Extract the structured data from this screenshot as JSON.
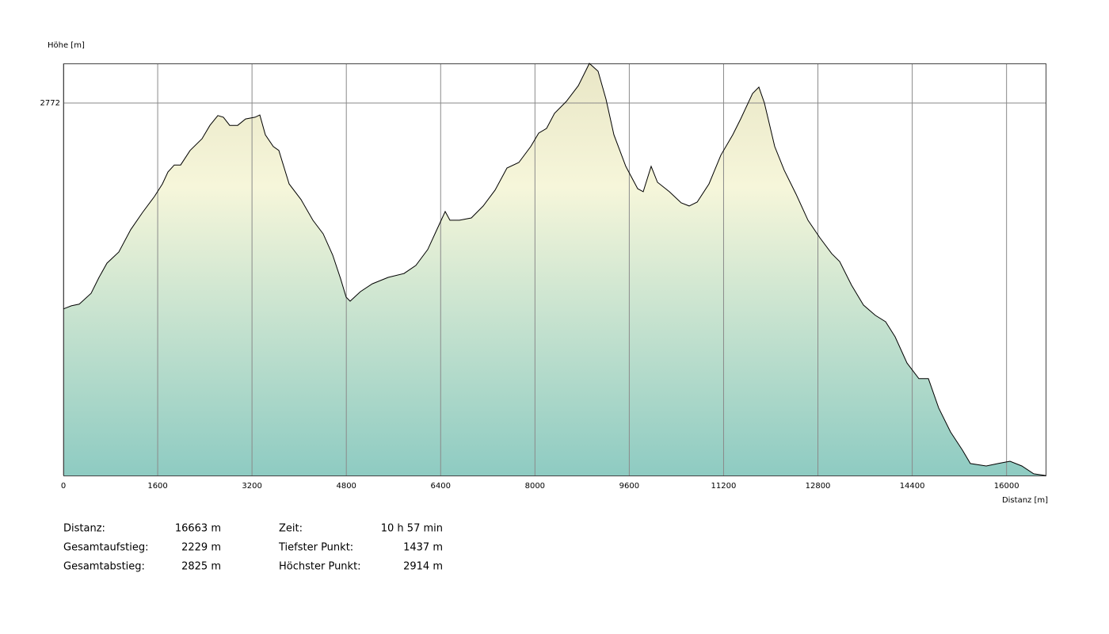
{
  "chart_data": {
    "type": "area",
    "y_label": "Höhe [m]",
    "x_label": "Distanz [m]",
    "xlim": [
      0,
      16663
    ],
    "ylim": [
      1437,
      2914
    ],
    "xticks": [
      0,
      1600,
      3200,
      4800,
      6400,
      8000,
      9600,
      11200,
      12800,
      14400,
      16000
    ],
    "yticks": [
      2772
    ],
    "grid": true,
    "line_color": "#000000",
    "fill_colors": [
      "#e9e6c6",
      "#f6f6da",
      "#8ecbc2"
    ],
    "x": [
      0,
      134,
      269,
      470,
      605,
      739,
      941,
      1142,
      1344,
      1545,
      1680,
      1774,
      1881,
      1989,
      2150,
      2352,
      2486,
      2620,
      2714,
      2822,
      2956,
      3091,
      3252,
      3333,
      3427,
      3561,
      3655,
      3830,
      4031,
      4233,
      4408,
      4569,
      4703,
      4797,
      4865,
      5039,
      5241,
      5510,
      5778,
      5980,
      6181,
      6316,
      6477,
      6558,
      6719,
      6921,
      7122,
      7324,
      7525,
      7727,
      7928,
      8063,
      8197,
      8332,
      8533,
      8735,
      8869,
      8923,
      9071,
      9205,
      9340,
      9541,
      9743,
      9837,
      9971,
      10079,
      10280,
      10482,
      10616,
      10751,
      10952,
      11154,
      11355,
      11490,
      11691,
      11798,
      11893,
      12067,
      12228,
      12430,
      12632,
      12833,
      13035,
      13169,
      13371,
      13572,
      13774,
      13949,
      14110,
      14312,
      14513,
      14674,
      14849,
      15051,
      15252,
      15387,
      15655,
      15857,
      16058,
      16260,
      16462,
      16663
    ],
    "values": [
      2034,
      2045,
      2051,
      2090,
      2147,
      2198,
      2238,
      2318,
      2380,
      2437,
      2482,
      2525,
      2550,
      2550,
      2602,
      2644,
      2692,
      2727,
      2721,
      2692,
      2692,
      2715,
      2721,
      2729,
      2658,
      2616,
      2602,
      2482,
      2426,
      2352,
      2303,
      2227,
      2142,
      2076,
      2062,
      2096,
      2124,
      2147,
      2161,
      2190,
      2247,
      2309,
      2383,
      2352,
      2352,
      2360,
      2403,
      2460,
      2539,
      2559,
      2616,
      2664,
      2681,
      2735,
      2778,
      2834,
      2891,
      2914,
      2886,
      2786,
      2658,
      2545,
      2465,
      2454,
      2545,
      2488,
      2454,
      2414,
      2403,
      2417,
      2482,
      2585,
      2658,
      2715,
      2806,
      2829,
      2772,
      2616,
      2531,
      2445,
      2352,
      2289,
      2232,
      2204,
      2119,
      2048,
      2011,
      1988,
      1934,
      1840,
      1784,
      1784,
      1679,
      1593,
      1528,
      1480,
      1471,
      1480,
      1488,
      1471,
      1443,
      1437
    ],
    "stats": [
      {
        "label": "Distanz:",
        "value": "16663 m"
      },
      {
        "label": "Gesamtaufstieg:",
        "value": "2229 m"
      },
      {
        "label": "Gesamtabstieg:",
        "value": "2825 m"
      },
      {
        "label": "Zeit:",
        "value": "10 h 57 min"
      },
      {
        "label": "Tiefster Punkt:",
        "value": "1437 m"
      },
      {
        "label": "Höchster Punkt:",
        "value": "2914 m"
      }
    ]
  }
}
